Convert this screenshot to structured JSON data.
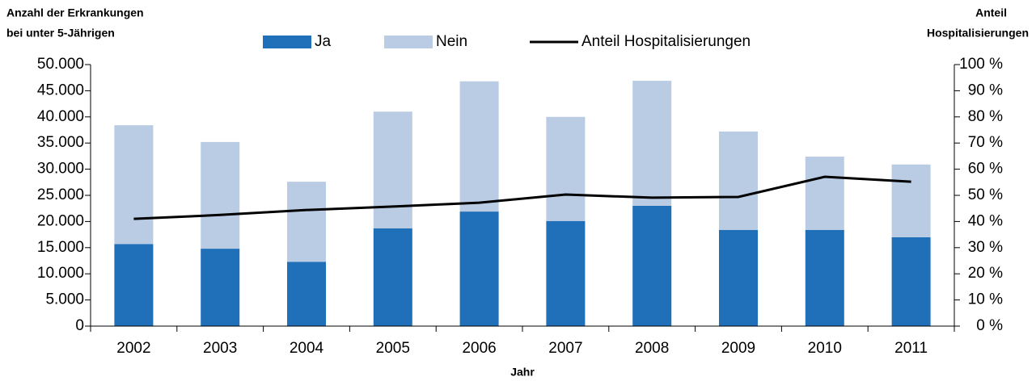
{
  "chart_data": {
    "type": "bar",
    "stacked": true,
    "ylabel": [
      "Anzahl der Erkrankungen",
      "bei unter 5-Jährigen"
    ],
    "y2label": [
      "Anteil",
      "Hospitalisierungen"
    ],
    "xlabel": "Jahr",
    "categories": [
      "2002",
      "2003",
      "2004",
      "2005",
      "2006",
      "2007",
      "2008",
      "2009",
      "2010",
      "2011"
    ],
    "series": [
      {
        "name": "Ja",
        "type": "bar",
        "color": "#1f6fb9",
        "values": [
          15700,
          14800,
          12300,
          18700,
          21900,
          20100,
          23000,
          18400,
          18400,
          17000
        ]
      },
      {
        "name": "Nein",
        "type": "bar",
        "color": "#b9cce4",
        "values": [
          22700,
          20400,
          15300,
          22300,
          24900,
          19900,
          23900,
          18800,
          14000,
          13900
        ]
      },
      {
        "name": "Anteil Hospitalisierungen",
        "type": "line",
        "axis": "y2",
        "color": "#000000",
        "values": [
          41,
          42.5,
          44.4,
          45.7,
          47.2,
          50.3,
          49.1,
          49.4,
          57.1,
          55.2
        ]
      }
    ],
    "ylim": [
      0,
      50000
    ],
    "yticks": [
      0,
      {
        "value": 5000,
        "label": "5.000"
      },
      {
        "value": 10000,
        "label": "10.000"
      },
      {
        "value": 15000,
        "label": "15.000"
      },
      {
        "value": 20000,
        "label": "20.000"
      },
      {
        "value": 25000,
        "label": "25.000"
      },
      {
        "value": 30000,
        "label": "30.000"
      },
      {
        "value": 35000,
        "label": "35.000"
      },
      {
        "value": 40000,
        "label": "40.000"
      },
      {
        "value": 45000,
        "label": "45.000"
      },
      {
        "value": 50000,
        "label": "50.000"
      }
    ],
    "y2lim": [
      0,
      100
    ],
    "y2ticks": [
      {
        "value": 0,
        "label": "0 %"
      },
      {
        "value": 10,
        "label": "10 %"
      },
      {
        "value": 20,
        "label": "20 %"
      },
      {
        "value": 30,
        "label": "30 %"
      },
      {
        "value": 40,
        "label": "40 %"
      },
      {
        "value": 50,
        "label": "50 %"
      },
      {
        "value": 60,
        "label": "60 %"
      },
      {
        "value": 70,
        "label": "70 %"
      },
      {
        "value": 80,
        "label": "80 %"
      },
      {
        "value": 90,
        "label": "90 %"
      },
      {
        "value": {
          "value": 100
        },
        "label": "100 %"
      }
    ],
    "legend": "top"
  }
}
